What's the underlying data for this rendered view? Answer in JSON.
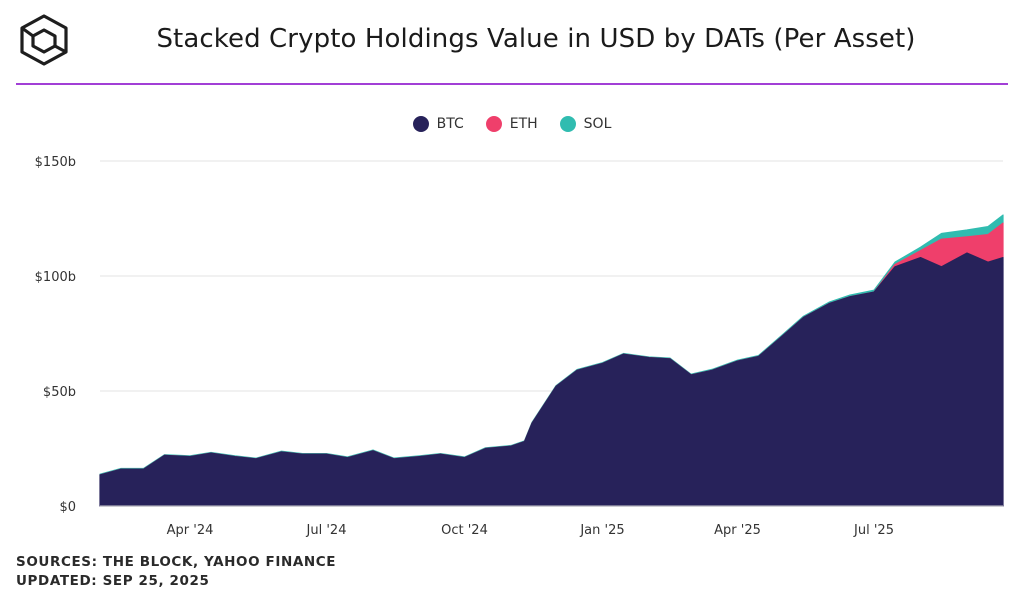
{
  "header": {
    "title": "Stacked Crypto Holdings Value in USD by DATs (Per Asset)",
    "logo_icon": "the-block-cube-icon"
  },
  "footer": {
    "sources": "SOURCES: THE BLOCK, YAHOO FINANCE",
    "updated": "UPDATED: SEP 25, 2025"
  },
  "chart_data": {
    "type": "area",
    "stacked": true,
    "title": "Stacked Crypto Holdings Value in USD by DATs (Per Asset)",
    "xlabel": "",
    "ylabel": "",
    "ylim": [
      0,
      150
    ],
    "y_ticks": [
      0,
      50,
      100,
      150
    ],
    "y_tick_labels": [
      "$0",
      "$50b",
      "$100b",
      "$150b"
    ],
    "x_range": [
      "2024-02-01",
      "2025-09-25"
    ],
    "x_ticks": [
      "2024-04-01",
      "2024-07-01",
      "2024-10-01",
      "2025-01-01",
      "2025-04-01",
      "2025-07-01"
    ],
    "x_tick_labels": [
      "Apr '24",
      "Jul '24",
      "Oct '24",
      "Jan '25",
      "Apr '25",
      "Jul '25"
    ],
    "grid": "horizontal",
    "legend_position": "top-center",
    "unit": "USD billions",
    "x": [
      "2024-02-01",
      "2024-02-15",
      "2024-03-01",
      "2024-03-15",
      "2024-04-01",
      "2024-04-15",
      "2024-05-01",
      "2024-05-15",
      "2024-06-01",
      "2024-06-15",
      "2024-07-01",
      "2024-07-15",
      "2024-08-01",
      "2024-08-15",
      "2024-09-01",
      "2024-09-15",
      "2024-10-01",
      "2024-10-15",
      "2024-11-01",
      "2024-11-10",
      "2024-11-15",
      "2024-12-01",
      "2024-12-15",
      "2025-01-01",
      "2025-01-15",
      "2025-02-01",
      "2025-02-15",
      "2025-03-01",
      "2025-03-15",
      "2025-04-01",
      "2025-04-15",
      "2025-05-01",
      "2025-05-15",
      "2025-06-01",
      "2025-06-15",
      "2025-07-01",
      "2025-07-15",
      "2025-08-01",
      "2025-08-15",
      "2025-09-01",
      "2025-09-15",
      "2025-09-25"
    ],
    "series": [
      {
        "name": "BTC",
        "color": "#27225a",
        "values": [
          13.5,
          16,
          16,
          22,
          21.5,
          23,
          21.5,
          20.5,
          23.5,
          22.5,
          22.5,
          21,
          24,
          20.5,
          21.5,
          22.5,
          21,
          25,
          26,
          28,
          36,
          52,
          59,
          62,
          66,
          64.5,
          64,
          57,
          59,
          63,
          65,
          74,
          82,
          88,
          91,
          93,
          104,
          108,
          104,
          110,
          106,
          108
        ]
      },
      {
        "name": "ETH",
        "color": "#ef3f6b",
        "values": [
          0,
          0,
          0,
          0,
          0,
          0,
          0,
          0,
          0,
          0,
          0,
          0,
          0,
          0,
          0,
          0,
          0,
          0,
          0,
          0,
          0,
          0,
          0,
          0,
          0,
          0,
          0,
          0,
          0,
          0,
          0,
          0,
          0,
          0,
          0,
          0,
          1,
          3,
          12,
          7,
          12,
          15
        ]
      },
      {
        "name": "SOL",
        "color": "#30bcb0",
        "values": [
          0.3,
          0.3,
          0.3,
          0.3,
          0.3,
          0.3,
          0.3,
          0.3,
          0.3,
          0.3,
          0.3,
          0.3,
          0.3,
          0.3,
          0.3,
          0.3,
          0.3,
          0.3,
          0.3,
          0.3,
          0.3,
          0.3,
          0.3,
          0.3,
          0.3,
          0.3,
          0.3,
          0.3,
          0.4,
          0.4,
          0.4,
          0.5,
          0.5,
          0.6,
          0.7,
          0.8,
          1,
          1.5,
          2.5,
          3,
          3.5,
          3.5
        ]
      }
    ]
  }
}
